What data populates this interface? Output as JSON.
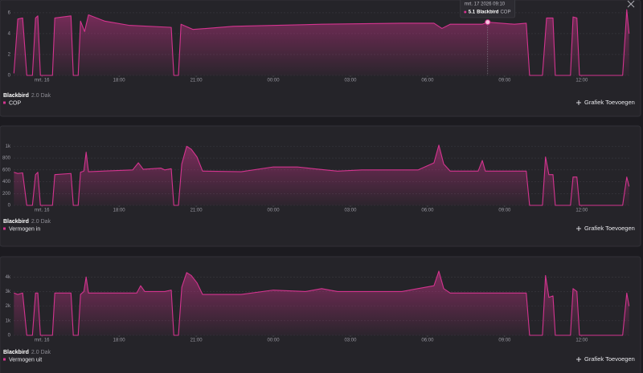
{
  "ui": {
    "button": "Grafiek Toevoegen"
  },
  "chart_data": [
    {
      "type": "line",
      "legend": {
        "device": "Blackbird",
        "zone": "2.0 Dak"
      },
      "x": [
        13.91,
        14.06,
        14.25,
        14.41,
        14.63,
        14.75,
        14.84,
        14.94,
        15.41,
        15.5,
        16.13,
        16.22,
        16.41,
        16.5,
        16.66,
        16.81,
        17.44,
        18.38,
        20.03,
        20.13,
        20.31,
        20.41,
        20.88,
        22.44,
        25.88,
        29.0,
        30.25,
        30.56,
        30.88,
        32.13,
        32.34,
        33.38,
        33.84,
        33.97,
        34.47,
        34.63,
        34.88,
        34.97,
        35.56,
        35.66,
        35.81,
        35.91,
        37.59,
        37.75,
        37.84
      ],
      "series": [
        {
          "name": "COP",
          "color": "#d4348f",
          "values": [
            0.2,
            5.4,
            5.5,
            0,
            0,
            5.5,
            5.7,
            0,
            0,
            5.5,
            5.7,
            0,
            0,
            5.2,
            4.2,
            5.8,
            5.2,
            4.8,
            4.6,
            0,
            0,
            4.9,
            4.4,
            4.7,
            4.9,
            5.0,
            5.0,
            4.5,
            4.9,
            4.9,
            5.1,
            4.9,
            5.0,
            0,
            0,
            5.5,
            5.5,
            0,
            0,
            5.6,
            5.5,
            0,
            0,
            6.3,
            4.0
          ]
        }
      ],
      "tooltip": {
        "title": "mrt. 17 2026 09:10",
        "value": 5.1,
        "series": "Blackbird",
        "label": "COP"
      },
      "xlim": [
        13.9,
        37.85
      ],
      "xticks": [
        {
          "value": 15,
          "label": "mrt. 16"
        },
        {
          "value": 18,
          "label": "18:00"
        },
        {
          "value": 21,
          "label": "21:00"
        },
        {
          "value": 24,
          "label": "00:00"
        },
        {
          "value": 27,
          "label": "03:00"
        },
        {
          "value": 30,
          "label": "06:00"
        },
        {
          "value": 33,
          "label": "09:00"
        },
        {
          "value": 36,
          "label": "12:00"
        }
      ],
      "ylim": [
        0,
        6.3
      ],
      "yticks": [
        0,
        2,
        4,
        6
      ],
      "grid": true
    },
    {
      "type": "line",
      "legend": {
        "device": "Blackbird",
        "zone": "2.0 Dak"
      },
      "x": [
        13.91,
        14.06,
        14.25,
        14.41,
        14.63,
        14.75,
        14.84,
        14.94,
        15.41,
        15.5,
        16.13,
        16.22,
        16.41,
        16.5,
        16.63,
        16.72,
        16.81,
        18.53,
        18.75,
        18.94,
        19.63,
        19.78,
        20.03,
        20.13,
        20.31,
        20.44,
        20.63,
        20.81,
        21.03,
        21.25,
        22.75,
        24.0,
        24.94,
        25.56,
        26.5,
        27.44,
        29.0,
        29.63,
        30.25,
        30.44,
        30.63,
        30.88,
        31.97,
        32.13,
        32.25,
        33.84,
        33.97,
        34.47,
        34.59,
        34.72,
        34.88,
        34.97,
        35.56,
        35.66,
        35.81,
        35.91,
        37.59,
        37.75,
        37.84
      ],
      "series": [
        {
          "name": "Vermogen in",
          "color": "#d4348f",
          "values": [
            560,
            540,
            550,
            0,
            0,
            520,
            560,
            0,
            0,
            520,
            540,
            0,
            0,
            560,
            580,
            900,
            570,
            600,
            720,
            610,
            630,
            600,
            620,
            0,
            0,
            700,
            1000,
            950,
            820,
            580,
            570,
            650,
            650,
            620,
            580,
            600,
            600,
            600,
            720,
            1020,
            700,
            580,
            580,
            760,
            580,
            580,
            0,
            0,
            820,
            520,
            520,
            0,
            0,
            480,
            480,
            0,
            0,
            480,
            320
          ]
        }
      ],
      "xlim": [
        13.9,
        37.85
      ],
      "xticks": [
        {
          "value": 15,
          "label": "mrt. 16"
        },
        {
          "value": 18,
          "label": "18:00"
        },
        {
          "value": 21,
          "label": "21:00"
        },
        {
          "value": 24,
          "label": "00:00"
        },
        {
          "value": 27,
          "label": "03:00"
        },
        {
          "value": 30,
          "label": "06:00"
        },
        {
          "value": 33,
          "label": "09:00"
        },
        {
          "value": 36,
          "label": "12:00"
        }
      ],
      "ylim": [
        0,
        1100
      ],
      "yticks": [
        0,
        200,
        400,
        600,
        800,
        {
          "value": 1000,
          "label": "1k"
        }
      ],
      "grid": true
    },
    {
      "type": "line",
      "legend": {
        "device": "Blackbird",
        "zone": "2.0 Dak"
      },
      "x": [
        13.91,
        14.06,
        14.25,
        14.41,
        14.63,
        14.75,
        14.84,
        14.94,
        15.41,
        15.5,
        16.13,
        16.22,
        16.41,
        16.5,
        16.63,
        16.72,
        16.81,
        18.69,
        18.84,
        19.0,
        19.78,
        20.03,
        20.13,
        20.31,
        20.44,
        20.63,
        20.81,
        21.03,
        21.25,
        22.75,
        24.0,
        25.25,
        25.88,
        26.5,
        29.0,
        30.25,
        30.44,
        30.63,
        30.88,
        33.84,
        33.97,
        34.47,
        34.59,
        34.72,
        34.88,
        34.97,
        35.56,
        35.66,
        35.81,
        35.91,
        37.59,
        37.75,
        37.84
      ],
      "series": [
        {
          "name": "Vermogen uit",
          "color": "#d4348f",
          "values": [
            2900,
            2800,
            2900,
            0,
            0,
            2900,
            2900,
            0,
            0,
            2900,
            2900,
            0,
            0,
            2800,
            3000,
            4000,
            2900,
            2900,
            3400,
            3000,
            3000,
            3100,
            0,
            0,
            3300,
            4300,
            4100,
            3600,
            2800,
            2800,
            3100,
            3000,
            3200,
            3000,
            3000,
            3400,
            4400,
            3200,
            2900,
            2900,
            0,
            0,
            4100,
            2600,
            2700,
            0,
            0,
            3200,
            3000,
            0,
            0,
            2900,
            2000
          ]
        }
      ],
      "xlim": [
        13.9,
        37.85
      ],
      "xticks": [
        {
          "value": 15,
          "label": "mrt. 16"
        },
        {
          "value": 18,
          "label": "18:00"
        },
        {
          "value": 21,
          "label": "21:00"
        },
        {
          "value": 24,
          "label": "00:00"
        },
        {
          "value": 27,
          "label": "03:00"
        },
        {
          "value": 30,
          "label": "06:00"
        },
        {
          "value": 33,
          "label": "09:00"
        },
        {
          "value": 36,
          "label": "12:00"
        }
      ],
      "ylim": [
        0,
        4400
      ],
      "yticks": [
        0,
        {
          "value": 1000,
          "label": "1k"
        },
        {
          "value": 2000,
          "label": "2k"
        },
        {
          "value": 3000,
          "label": "3k"
        },
        {
          "value": 4000,
          "label": "4k"
        }
      ],
      "grid": true
    }
  ]
}
